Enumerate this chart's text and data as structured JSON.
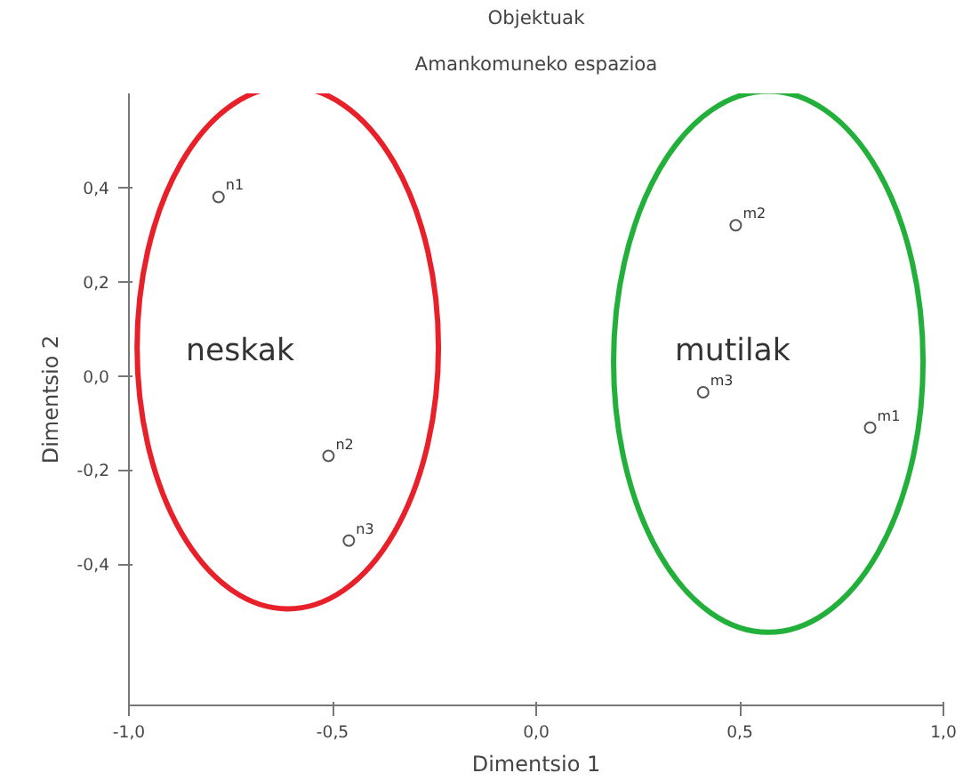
{
  "chart_data": {
    "type": "scatter",
    "title": "Objektuak",
    "subtitle": "Amankomuneko espazioa",
    "xlabel": "Dimentsio 1",
    "ylabel": "Dimentsio 2",
    "x": [
      -0.78,
      -0.51,
      -0.46,
      0.82,
      0.49,
      0.41
    ],
    "series": [
      {
        "color": "#555555",
        "values": [
          0.38,
          -0.17,
          -0.35,
          -0.11,
          0.32,
          -0.035
        ]
      }
    ],
    "marker": "circle",
    "grid": false,
    "xlim": [
      -1,
      1
    ],
    "ylim": [
      -0.7,
      0.6
    ],
    "xticks": [
      {
        "value": -1,
        "label": "-1,0"
      },
      {
        "value": -0.5,
        "label": "-0,5"
      },
      {
        "value": 0,
        "label": "0,0"
      },
      {
        "value": 0.5,
        "label": "0,5"
      },
      {
        "value": 1,
        "label": "1,0"
      }
    ],
    "yticks": [
      {
        "value": -0.4,
        "label": "-0,4"
      },
      {
        "value": -0.2,
        "label": "-0,2"
      },
      {
        "value": 0,
        "label": "0,0"
      },
      {
        "value": 0.2,
        "label": "0,2"
      },
      {
        "value": 0.4,
        "label": "0,4"
      }
    ],
    "annotations": [
      {
        "text": "n1",
        "x": -0.78,
        "y": 0.38
      },
      {
        "text": "n2",
        "x": -0.51,
        "y": -0.17
      },
      {
        "text": "n3",
        "x": -0.46,
        "y": -0.35
      },
      {
        "text": "m1",
        "x": 0.82,
        "y": -0.11
      },
      {
        "text": "m2",
        "x": 0.49,
        "y": 0.32
      },
      {
        "text": "m3",
        "x": 0.41,
        "y": -0.035
      },
      "neskak",
      "mutilak"
    ]
  }
}
